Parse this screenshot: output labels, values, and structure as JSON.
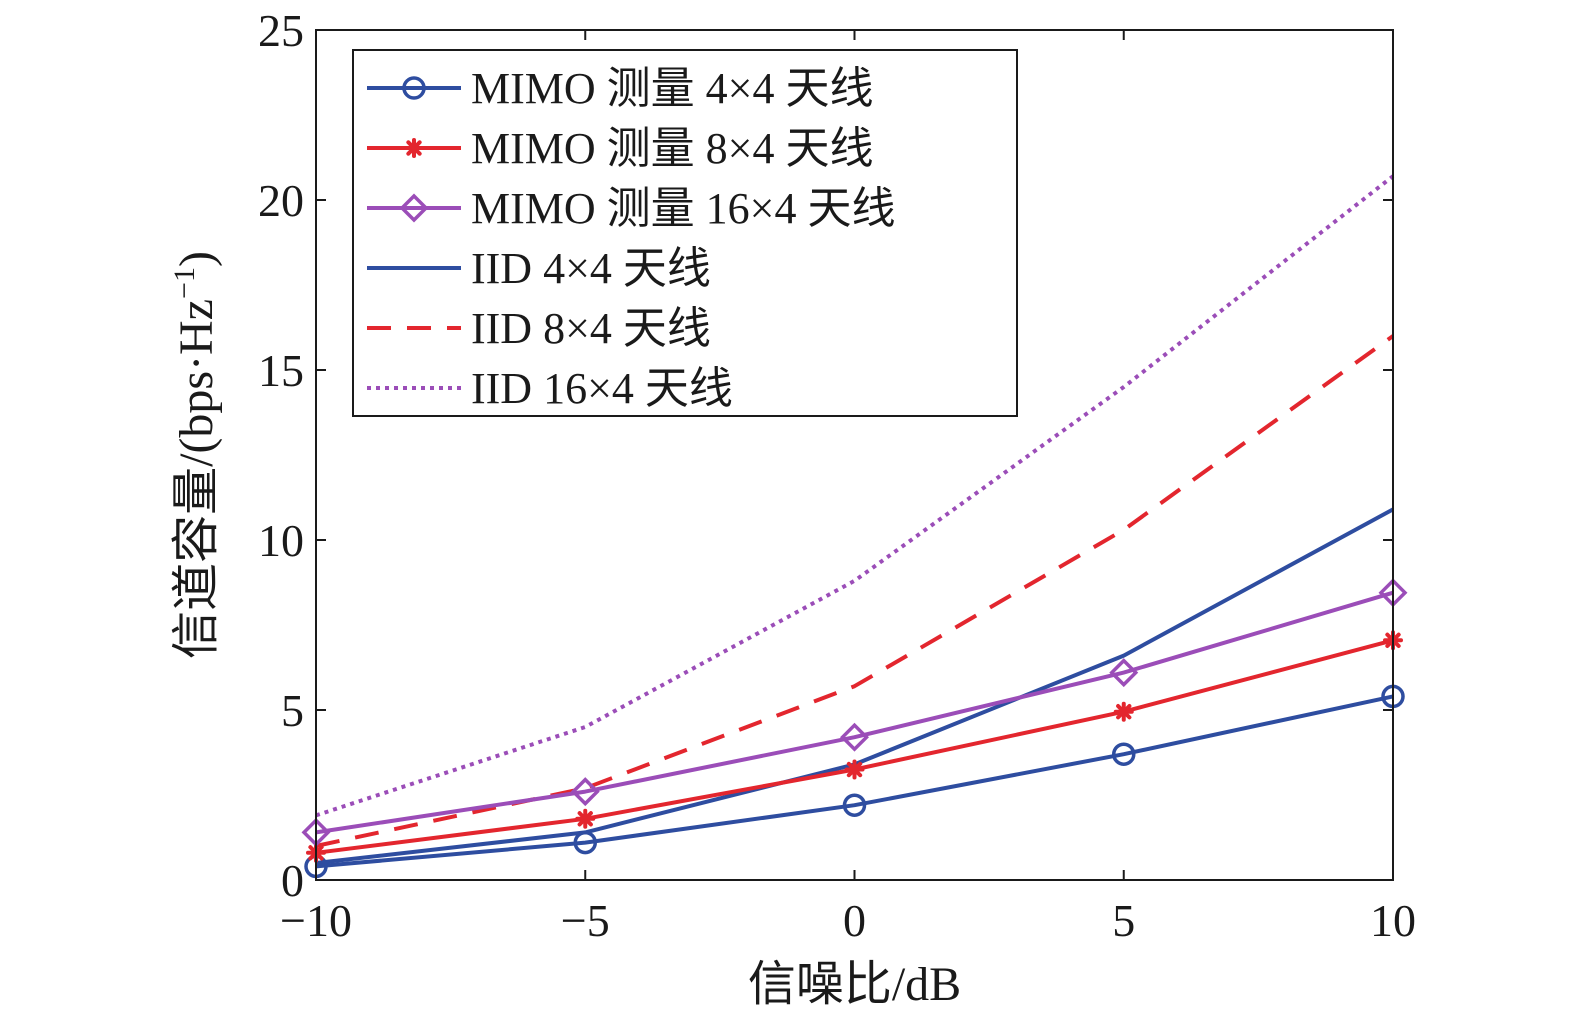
{
  "chart_data": {
    "type": "line",
    "title": "",
    "xlabel": "信噪比/dB",
    "ylabel_main": "信道容量/(bps·Hz",
    "ylabel_sup": "−1",
    "ylabel_close": ")",
    "xlim": [
      -10,
      10
    ],
    "ylim": [
      0,
      25
    ],
    "x_ticks": [
      -10,
      -5,
      0,
      5,
      10
    ],
    "y_ticks": [
      0,
      5,
      10,
      15,
      20,
      25
    ],
    "x_tick_labels": [
      "−10",
      "−5",
      "0",
      "5",
      "10"
    ],
    "y_tick_labels": [
      "0",
      "5",
      "10",
      "15",
      "20",
      "25"
    ],
    "grid": false,
    "legend_position": "top-left",
    "x": [
      -10,
      -5,
      0,
      5,
      10
    ],
    "series": [
      {
        "name": "MIMO 测量 4×4 天线",
        "values": [
          0.4,
          1.1,
          2.2,
          3.7,
          5.4
        ],
        "color": "#2e4da0",
        "style": "solid",
        "marker": "circle"
      },
      {
        "name": "MIMO 测量 8×4 天线",
        "values": [
          0.8,
          1.8,
          3.25,
          4.95,
          7.05
        ],
        "color": "#e3262e",
        "style": "solid",
        "marker": "asterisk"
      },
      {
        "name": "MIMO 测量 16×4 天线",
        "values": [
          1.4,
          2.6,
          4.2,
          6.1,
          8.45
        ],
        "color": "#9b4db8",
        "style": "solid",
        "marker": "diamond"
      },
      {
        "name": "IID 4×4 天线",
        "values": [
          0.5,
          1.4,
          3.4,
          6.6,
          10.9
        ],
        "color": "#2e4da0",
        "style": "solid",
        "marker": "none"
      },
      {
        "name": "IID 8×4 天线",
        "values": [
          1.0,
          2.7,
          5.7,
          10.3,
          16.0
        ],
        "color": "#e3262e",
        "style": "dashed",
        "marker": "none"
      },
      {
        "name": "IID 16×4 天线",
        "values": [
          1.9,
          4.5,
          8.8,
          14.5,
          20.7
        ],
        "color": "#9b4db8",
        "style": "dotted",
        "marker": "none"
      }
    ]
  }
}
